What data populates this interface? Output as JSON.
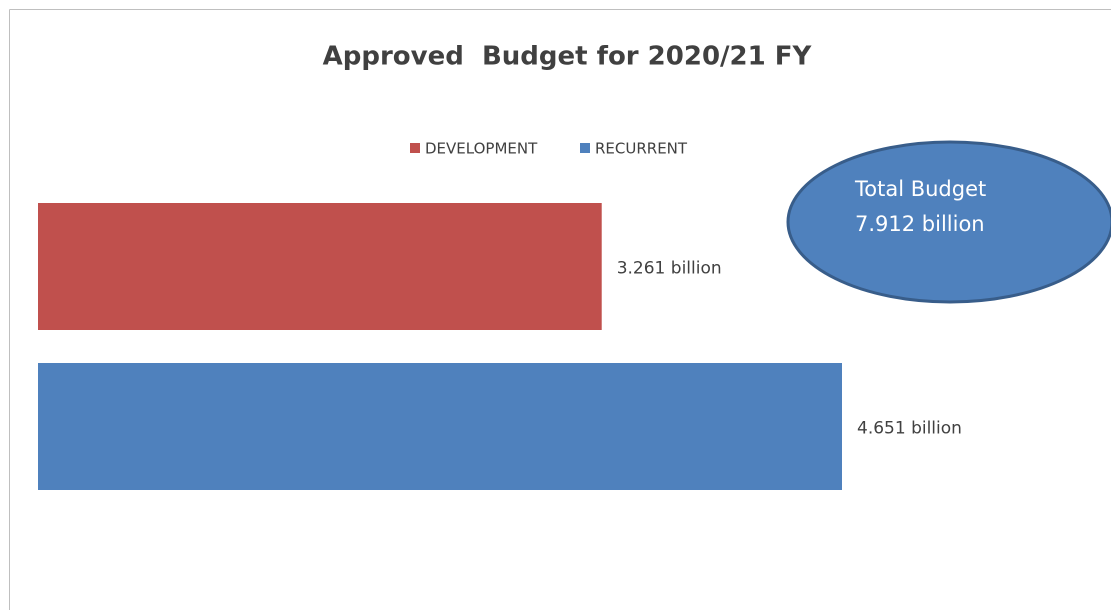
{
  "chart_data": {
    "type": "bar",
    "orientation": "horizontal",
    "title": "Approved  Budget for 2020/21 FY",
    "categories": [
      null
    ],
    "series": [
      {
        "name": "DEVELOPMENT",
        "color": "#c0504d",
        "values": [
          3.261
        ],
        "value_labels": [
          "3.261 billion"
        ]
      },
      {
        "name": "RECURRENT",
        "color": "#4f81bd",
        "values": [
          4.651
        ],
        "value_labels": [
          "4.651 billion"
        ]
      }
    ],
    "annotation": {
      "lines": [
        "Total Budget",
        "7.912 billion"
      ],
      "color": "#4f81bd"
    },
    "legend_position": "top"
  }
}
